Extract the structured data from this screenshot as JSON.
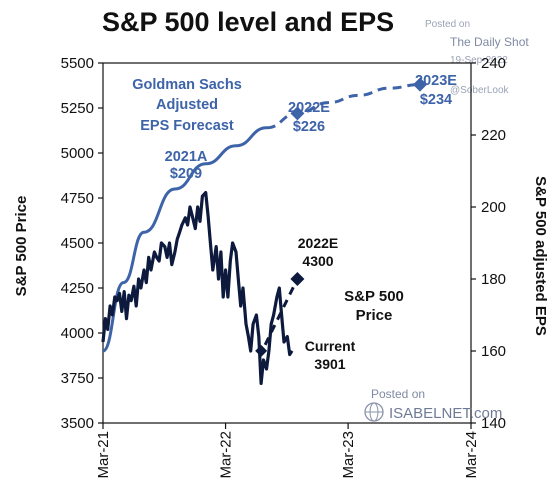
{
  "header": {
    "title": "S&P 500 level and EPS",
    "watermark_posted": "Posted on",
    "watermark_source": "The Daily Shot",
    "watermark_date": "19-Sep-2022",
    "watermark_handle": "@SoberLook"
  },
  "footer_watermark": {
    "posted": "Posted on",
    "site": "ISABELNET.com"
  },
  "chart_data": {
    "type": "line",
    "title": "S&P 500 level and EPS",
    "ylabel": "S&P 500 Price",
    "ylabel_right": "S&P 500 adjusted EPS",
    "x_ticks": [
      "Mar-21",
      "Mar-22",
      "Mar-23",
      "Mar-24"
    ],
    "ylim": [
      3500,
      5500
    ],
    "y_ticks": [
      3500,
      3750,
      4000,
      4250,
      4500,
      4750,
      5000,
      5250,
      5500
    ],
    "ylim_right": [
      140,
      240
    ],
    "y_ticks_right": [
      140,
      160,
      180,
      200,
      220,
      240
    ],
    "series": [
      {
        "name": "S&P 500 Price",
        "axis": "left",
        "color": "#0d1a3d",
        "x": [
          "2021-03-01",
          "2021-03-08",
          "2021-03-15",
          "2021-03-22",
          "2021-03-29",
          "2021-04-05",
          "2021-04-12",
          "2021-04-19",
          "2021-04-26",
          "2021-05-03",
          "2021-05-10",
          "2021-05-17",
          "2021-05-24",
          "2021-06-01",
          "2021-06-08",
          "2021-06-15",
          "2021-06-22",
          "2021-07-01",
          "2021-07-08",
          "2021-07-15",
          "2021-07-22",
          "2021-08-01",
          "2021-08-08",
          "2021-08-15",
          "2021-08-22",
          "2021-09-01",
          "2021-09-08",
          "2021-09-15",
          "2021-09-22",
          "2021-10-01",
          "2021-10-08",
          "2021-10-15",
          "2021-10-22",
          "2021-11-01",
          "2021-11-08",
          "2021-11-15",
          "2021-11-22",
          "2021-12-01",
          "2021-12-08",
          "2021-12-15",
          "2021-12-22",
          "2022-01-01",
          "2022-01-08",
          "2022-01-15",
          "2022-01-22",
          "2022-02-01",
          "2022-02-08",
          "2022-02-15",
          "2022-02-22",
          "2022-03-01",
          "2022-03-08",
          "2022-03-15",
          "2022-03-22",
          "2022-04-01",
          "2022-04-08",
          "2022-04-15",
          "2022-04-22",
          "2022-05-01",
          "2022-05-08",
          "2022-05-15",
          "2022-05-22",
          "2022-06-01",
          "2022-06-08",
          "2022-06-15",
          "2022-06-22",
          "2022-07-01",
          "2022-07-08",
          "2022-07-15",
          "2022-07-22",
          "2022-08-01",
          "2022-08-08",
          "2022-08-15",
          "2022-08-22",
          "2022-09-01",
          "2022-09-08",
          "2022-09-15"
        ],
        "values": [
          3950,
          4080,
          4020,
          4150,
          4100,
          4200,
          4180,
          4220,
          4120,
          4230,
          4080,
          4210,
          4180,
          4260,
          4150,
          4300,
          4250,
          4350,
          4280,
          4420,
          4350,
          4450,
          4420,
          4400,
          4500,
          4480,
          4420,
          4500,
          4380,
          4450,
          4520,
          4560,
          4600,
          4640,
          4600,
          4700,
          4650,
          4580,
          4700,
          4620,
          4760,
          4780,
          4650,
          4500,
          4350,
          4480,
          4300,
          4450,
          4200,
          4350,
          4200,
          4400,
          4500,
          4450,
          4300,
          4150,
          4250,
          4050,
          3980,
          3900,
          4050,
          4100,
          3980,
          3720,
          3850,
          3800,
          3900,
          4050,
          4100,
          4200,
          4250,
          4100,
          3950,
          3980,
          3880,
          3901
        ]
      },
      {
        "name": "Goldman Sachs Adjusted EPS Forecast",
        "axis": "right",
        "color": "#3d63a8",
        "x": [
          "2021-03-01",
          "2021-05-01",
          "2021-07-01",
          "2021-10-01",
          "2022-01-01",
          "2022-04-01",
          "2022-07-01",
          "2022-10-01",
          "2023-01-01",
          "2023-04-01",
          "2023-07-01",
          "2023-10-01"
        ],
        "values": [
          160,
          179,
          193,
          205,
          212,
          217,
          222,
          226,
          229,
          231,
          233,
          234
        ]
      }
    ],
    "annotations": [
      {
        "label": "Goldman Sachs",
        "group": "gs"
      },
      {
        "label": "Adjusted",
        "group": "gs"
      },
      {
        "label": "EPS Forecast",
        "group": "gs"
      },
      {
        "label": "2021A",
        "group": "a2021"
      },
      {
        "label": "$209",
        "group": "a2021"
      },
      {
        "label": "2022E",
        "group": "e2022"
      },
      {
        "label": "$226",
        "group": "e2022"
      },
      {
        "label": "2023E",
        "group": "e2023"
      },
      {
        "label": "$234",
        "group": "e2023"
      },
      {
        "label": "2022E",
        "group": "p2022"
      },
      {
        "label": "4300",
        "group": "p2022"
      },
      {
        "label": "S&P 500",
        "group": "price"
      },
      {
        "label": "Price",
        "group": "price"
      },
      {
        "label": "Current",
        "group": "current"
      },
      {
        "label": "3901",
        "group": "current"
      }
    ],
    "targets": {
      "price_current": {
        "x": "2022-06-15",
        "y": 3901
      },
      "price_2022E": {
        "x": "2022-10-01",
        "y": 4300
      },
      "eps_2022E": {
        "x": "2022-10-01",
        "y": 226
      },
      "eps_2023E": {
        "x": "2023-10-01",
        "y": 234
      }
    },
    "grid": false,
    "legend": "none"
  }
}
